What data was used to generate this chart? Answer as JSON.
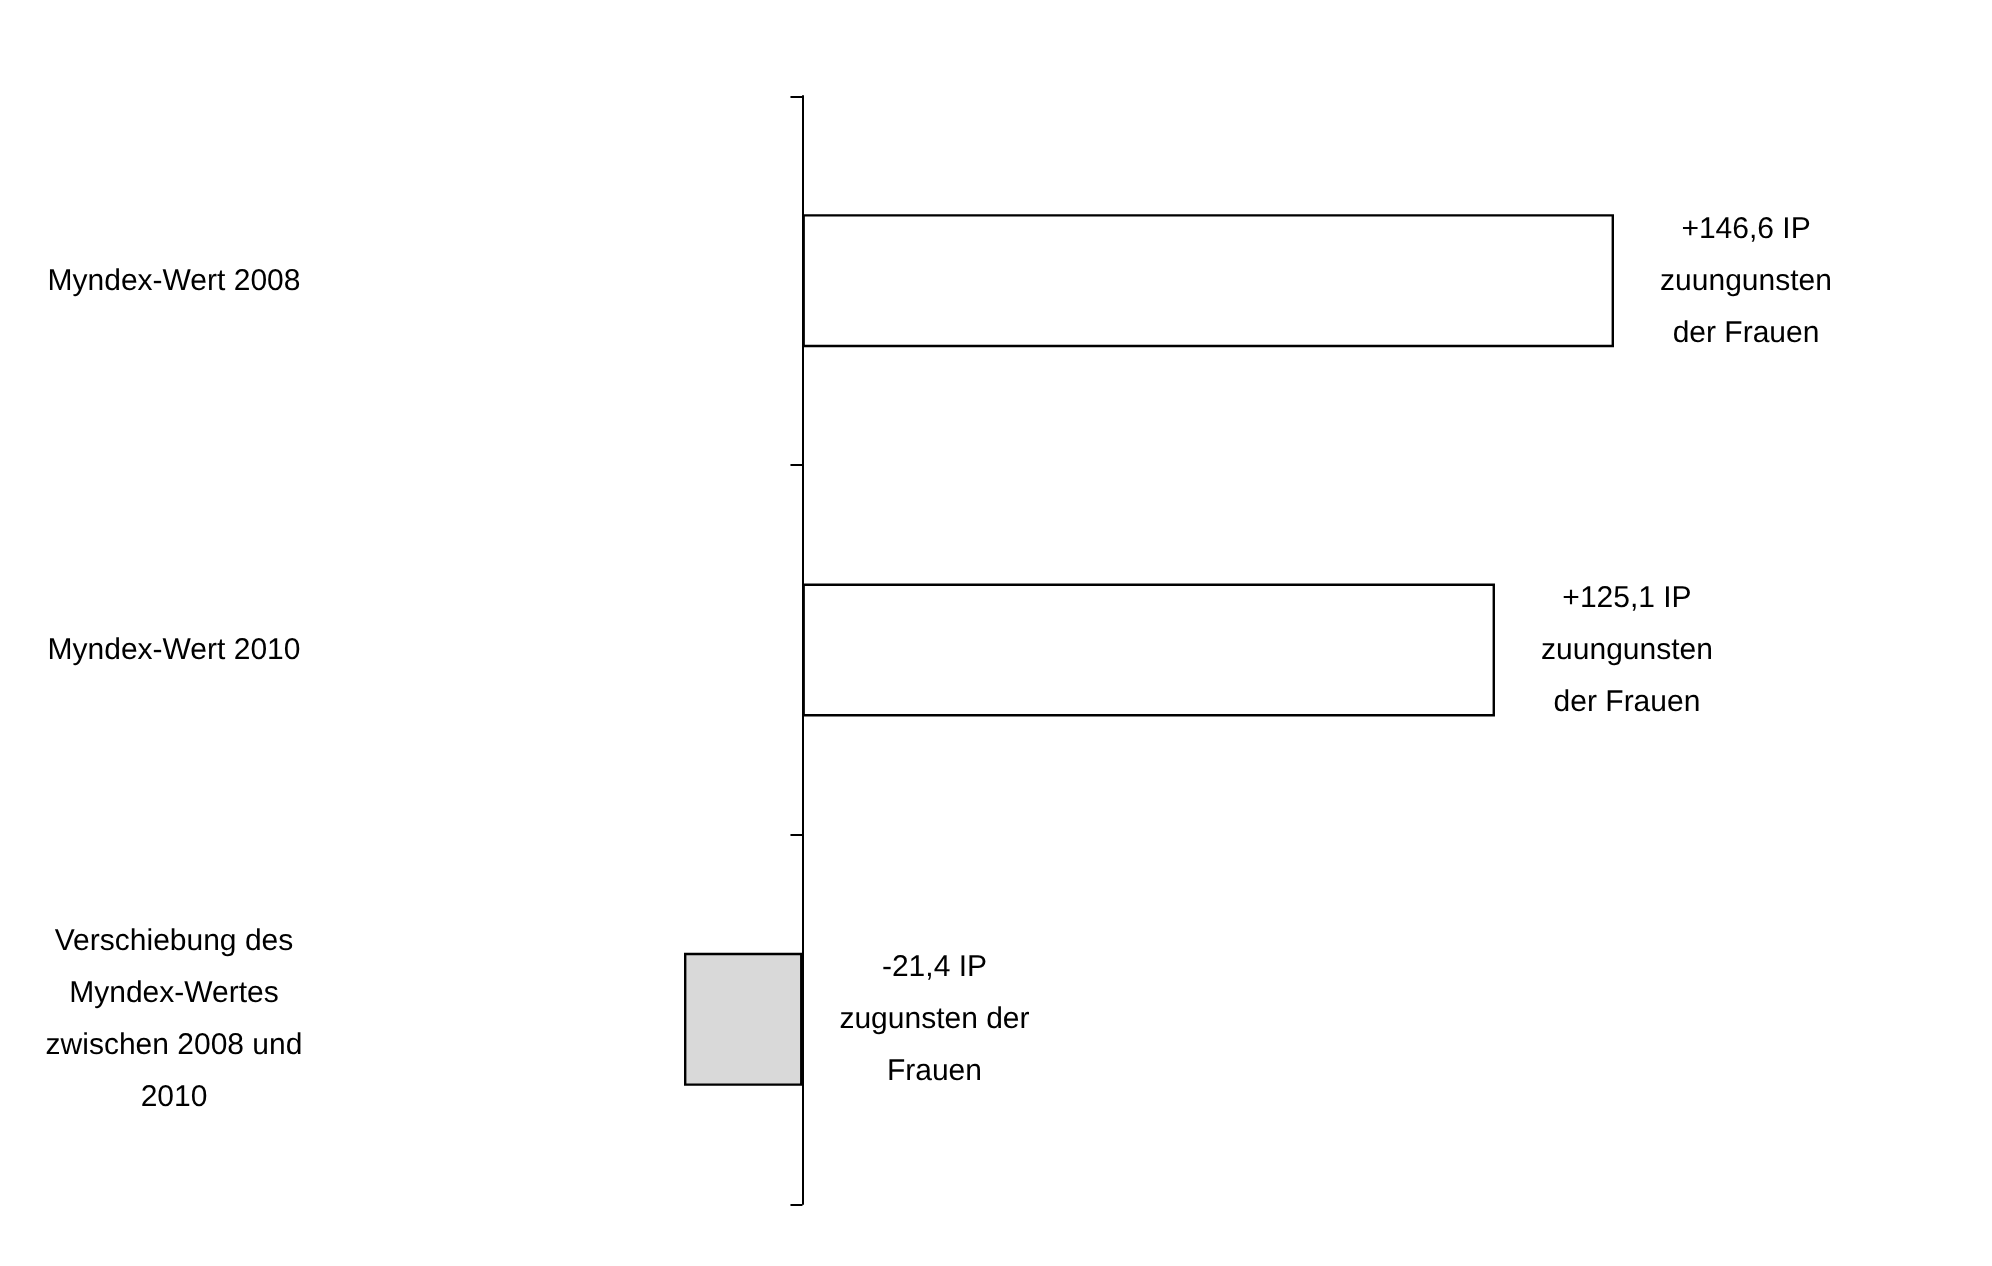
{
  "chart_data": {
    "type": "bar",
    "orientation": "horizontal",
    "categories": [
      "Myndex-Wert 2008",
      "Myndex-Wert 2010",
      "Verschiebung des\nMyndex-Wertes\nzwischen 2008 und\n2010"
    ],
    "values": [
      146.6,
      125.1,
      -21.4
    ],
    "colors": [
      "#ffffff",
      "#ffffff",
      "#d9d9d9"
    ],
    "value_labels": [
      "+146,6 IP\nzuungunsten\nder Frauen",
      "+125,1 IP\nzuungunsten\nder Frauen",
      "-21,4 IP\nzugunsten der\nFrauen"
    ],
    "grid": false
  }
}
